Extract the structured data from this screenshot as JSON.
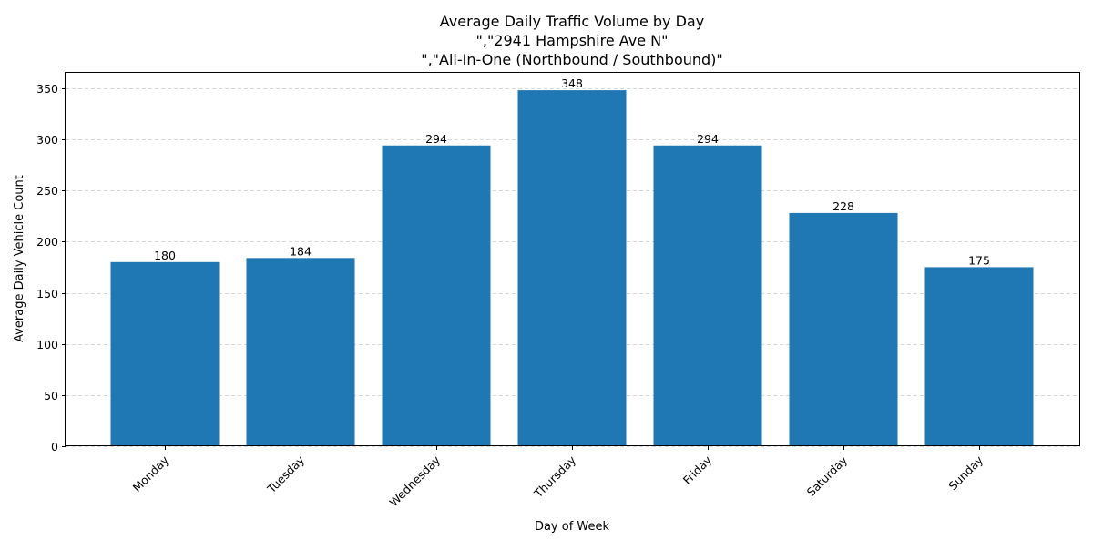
{
  "chart_data": {
    "type": "bar",
    "title_lines": [
      "Average Daily Traffic Volume by Day",
      "\",\"2941 Hampshire Ave N\"",
      "\",\"All-In-One (Northbound / Southbound)\""
    ],
    "xlabel": "Day of Week",
    "ylabel": "Average Daily Vehicle Count",
    "categories": [
      "Monday",
      "Tuesday",
      "Wednesday",
      "Thursday",
      "Friday",
      "Saturday",
      "Sunday"
    ],
    "values": [
      180,
      184,
      294,
      348,
      294,
      228,
      175
    ],
    "data_labels": [
      "180",
      "184",
      "294",
      "348",
      "294",
      "228",
      "175"
    ],
    "ylim": [
      0,
      365
    ],
    "yticks": [
      0,
      50,
      100,
      150,
      200,
      250,
      300,
      350
    ],
    "grid": "y-dashed",
    "bar_color": "#1f77b4",
    "grid_color": "#cccccc"
  }
}
